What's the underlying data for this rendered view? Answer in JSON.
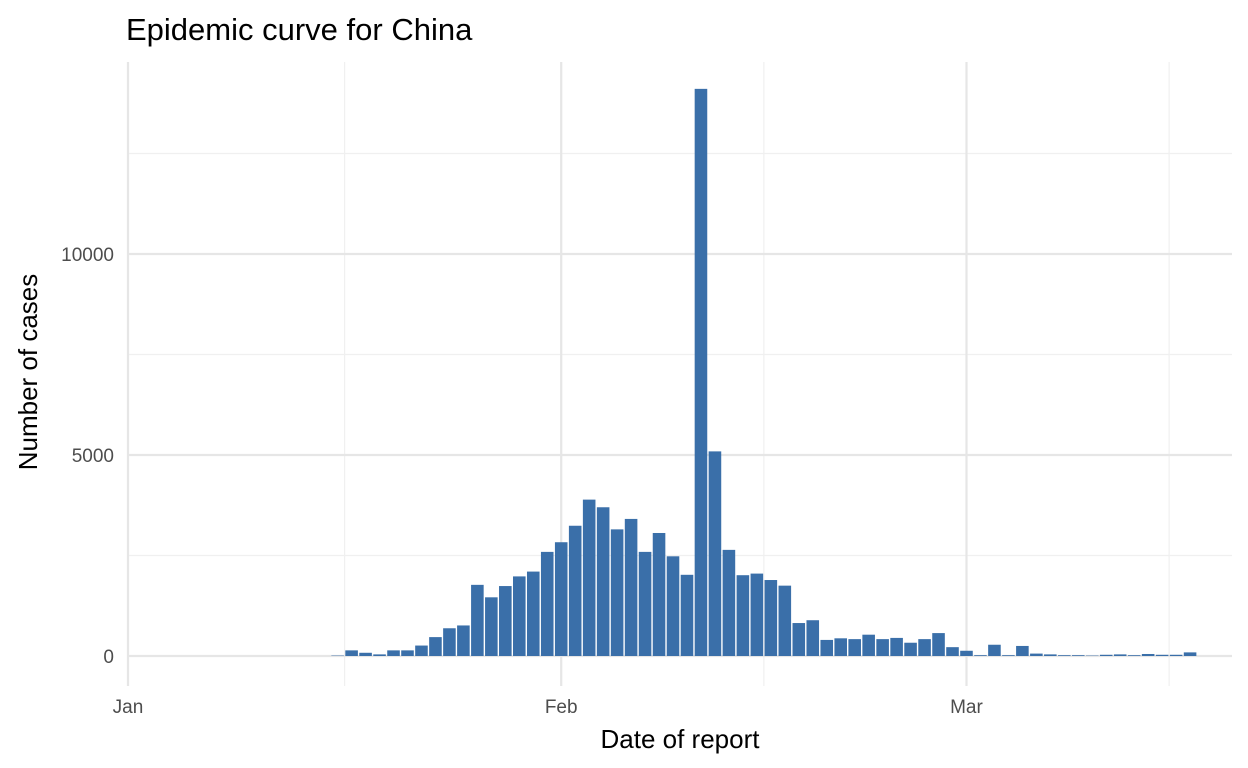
{
  "chart_data": {
    "type": "bar",
    "title": "Epidemic curve for China",
    "xlabel": "Date of report",
    "ylabel": "Number of cases",
    "grid": true,
    "legend": "none",
    "bar_color": "#3a6fa9",
    "xlim": [
      "2020-01-01",
      "2020-03-20"
    ],
    "ylim": [
      0,
      14200
    ],
    "x_ticks": [
      {
        "label": "Jan",
        "date": "2020-01-01"
      },
      {
        "label": "Feb",
        "date": "2020-02-01"
      },
      {
        "label": "Mar",
        "date": "2020-03-01"
      }
    ],
    "y_ticks": [
      0,
      5000,
      10000
    ],
    "dates": [
      "2020-01-16",
      "2020-01-17",
      "2020-01-18",
      "2020-01-19",
      "2020-01-20",
      "2020-01-21",
      "2020-01-22",
      "2020-01-23",
      "2020-01-24",
      "2020-01-25",
      "2020-01-26",
      "2020-01-27",
      "2020-01-28",
      "2020-01-29",
      "2020-01-30",
      "2020-01-31",
      "2020-02-01",
      "2020-02-02",
      "2020-02-03",
      "2020-02-04",
      "2020-02-05",
      "2020-02-06",
      "2020-02-07",
      "2020-02-08",
      "2020-02-09",
      "2020-02-10",
      "2020-02-11",
      "2020-02-12",
      "2020-02-13",
      "2020-02-14",
      "2020-02-15",
      "2020-02-16",
      "2020-02-17",
      "2020-02-18",
      "2020-02-19",
      "2020-02-20",
      "2020-02-21",
      "2020-02-22",
      "2020-02-23",
      "2020-02-24",
      "2020-02-25",
      "2020-02-26",
      "2020-02-27",
      "2020-02-28",
      "2020-02-29",
      "2020-03-01",
      "2020-03-02",
      "2020-03-03",
      "2020-03-04",
      "2020-03-05",
      "2020-03-06",
      "2020-03-07",
      "2020-03-08",
      "2020-03-09",
      "2020-03-10",
      "2020-03-11",
      "2020-03-12",
      "2020-03-13",
      "2020-03-14",
      "2020-03-15",
      "2020-03-16",
      "2020-03-17",
      "2020-03-18"
    ],
    "values": [
      10,
      140,
      80,
      40,
      140,
      140,
      260,
      470,
      690,
      760,
      1770,
      1460,
      1740,
      1980,
      2100,
      2590,
      2830,
      3240,
      3890,
      3700,
      3150,
      3410,
      2590,
      3060,
      2480,
      2020,
      14108,
      5090,
      2640,
      2010,
      2050,
      1890,
      1750,
      820,
      890,
      400,
      440,
      420,
      530,
      420,
      450,
      330,
      420,
      570,
      220,
      130,
      20,
      280,
      20,
      250,
      60,
      40,
      20,
      20,
      10,
      30,
      40,
      20,
      50,
      30,
      30,
      90,
      0
    ]
  }
}
